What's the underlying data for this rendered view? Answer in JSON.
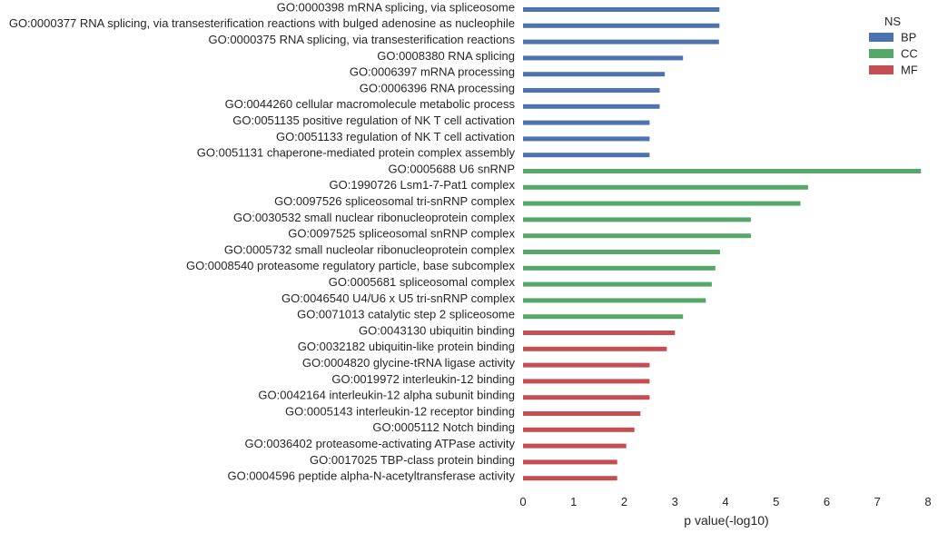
{
  "chart_data": {
    "type": "bar",
    "orientation": "horizontal",
    "xlabel": "p value(-log10)",
    "ylabel": "",
    "xlim": [
      0,
      8
    ],
    "xticks": [
      0,
      1,
      2,
      3,
      4,
      5,
      6,
      7,
      8
    ],
    "grid": false,
    "legend": {
      "title": "NS",
      "placement": "top-right",
      "entries": [
        {
          "name": "BP",
          "color": "#4c72b0"
        },
        {
          "name": "CC",
          "color": "#55a868"
        },
        {
          "name": "MF",
          "color": "#c44e52"
        }
      ]
    },
    "bars": [
      {
        "label": "GO:0000398 mRNA splicing, via spliceosome",
        "value": 3.88,
        "ns": "BP"
      },
      {
        "label": "GO:0000377 RNA splicing, via transesterification reactions with bulged adenosine as nucleophile",
        "value": 3.88,
        "ns": "BP"
      },
      {
        "label": "GO:0000375 RNA splicing, via transesterification reactions",
        "value": 3.87,
        "ns": "BP"
      },
      {
        "label": "GO:0008380 RNA splicing",
        "value": 3.16,
        "ns": "BP"
      },
      {
        "label": "GO:0006397 mRNA processing",
        "value": 2.8,
        "ns": "BP"
      },
      {
        "label": "GO:0006396 RNA processing",
        "value": 2.7,
        "ns": "BP"
      },
      {
        "label": "GO:0044260 cellular macromolecule metabolic process",
        "value": 2.7,
        "ns": "BP"
      },
      {
        "label": "GO:0051135 positive regulation of NK T cell activation",
        "value": 2.5,
        "ns": "BP"
      },
      {
        "label": "GO:0051133 regulation of NK T cell activation",
        "value": 2.5,
        "ns": "BP"
      },
      {
        "label": "GO:0051131 chaperone-mediated protein complex assembly",
        "value": 2.5,
        "ns": "BP"
      },
      {
        "label": "GO:0005688 U6 snRNP",
        "value": 7.86,
        "ns": "CC"
      },
      {
        "label": "GO:1990726 Lsm1-7-Pat1 complex",
        "value": 5.63,
        "ns": "CC"
      },
      {
        "label": "GO:0097526 spliceosomal tri-snRNP complex",
        "value": 5.48,
        "ns": "CC"
      },
      {
        "label": "GO:0030532 small nuclear ribonucleoprotein complex",
        "value": 4.5,
        "ns": "CC"
      },
      {
        "label": "GO:0097525 spliceosomal snRNP complex",
        "value": 4.5,
        "ns": "CC"
      },
      {
        "label": "GO:0005732 small nucleolar ribonucleoprotein complex",
        "value": 3.89,
        "ns": "CC"
      },
      {
        "label": "GO:0008540 proteasome regulatory particle, base subcomplex",
        "value": 3.8,
        "ns": "CC"
      },
      {
        "label": "GO:0005681 spliceosomal complex",
        "value": 3.73,
        "ns": "CC"
      },
      {
        "label": "GO:0046540 U4/U6 x U5 tri-snRNP complex",
        "value": 3.61,
        "ns": "CC"
      },
      {
        "label": "GO:0071013 catalytic step 2 spliceosome",
        "value": 3.16,
        "ns": "CC"
      },
      {
        "label": "GO:0043130 ubiquitin binding",
        "value": 3.0,
        "ns": "MF"
      },
      {
        "label": "GO:0032182 ubiquitin-like protein binding",
        "value": 2.84,
        "ns": "MF"
      },
      {
        "label": "GO:0004820 glycine-tRNA ligase activity",
        "value": 2.5,
        "ns": "MF"
      },
      {
        "label": "GO:0019972 interleukin-12 binding",
        "value": 2.5,
        "ns": "MF"
      },
      {
        "label": "GO:0042164 interleukin-12 alpha subunit binding",
        "value": 2.5,
        "ns": "MF"
      },
      {
        "label": "GO:0005143 interleukin-12 receptor binding",
        "value": 2.32,
        "ns": "MF"
      },
      {
        "label": "GO:0005112 Notch binding",
        "value": 2.2,
        "ns": "MF"
      },
      {
        "label": "GO:0036402 proteasome-activating ATPase activity",
        "value": 2.04,
        "ns": "MF"
      },
      {
        "label": "GO:0017025 TBP-class protein binding",
        "value": 1.86,
        "ns": "MF"
      },
      {
        "label": "GO:0004596 peptide alpha-N-acetyltransferase activity",
        "value": 1.86,
        "ns": "MF"
      }
    ]
  }
}
